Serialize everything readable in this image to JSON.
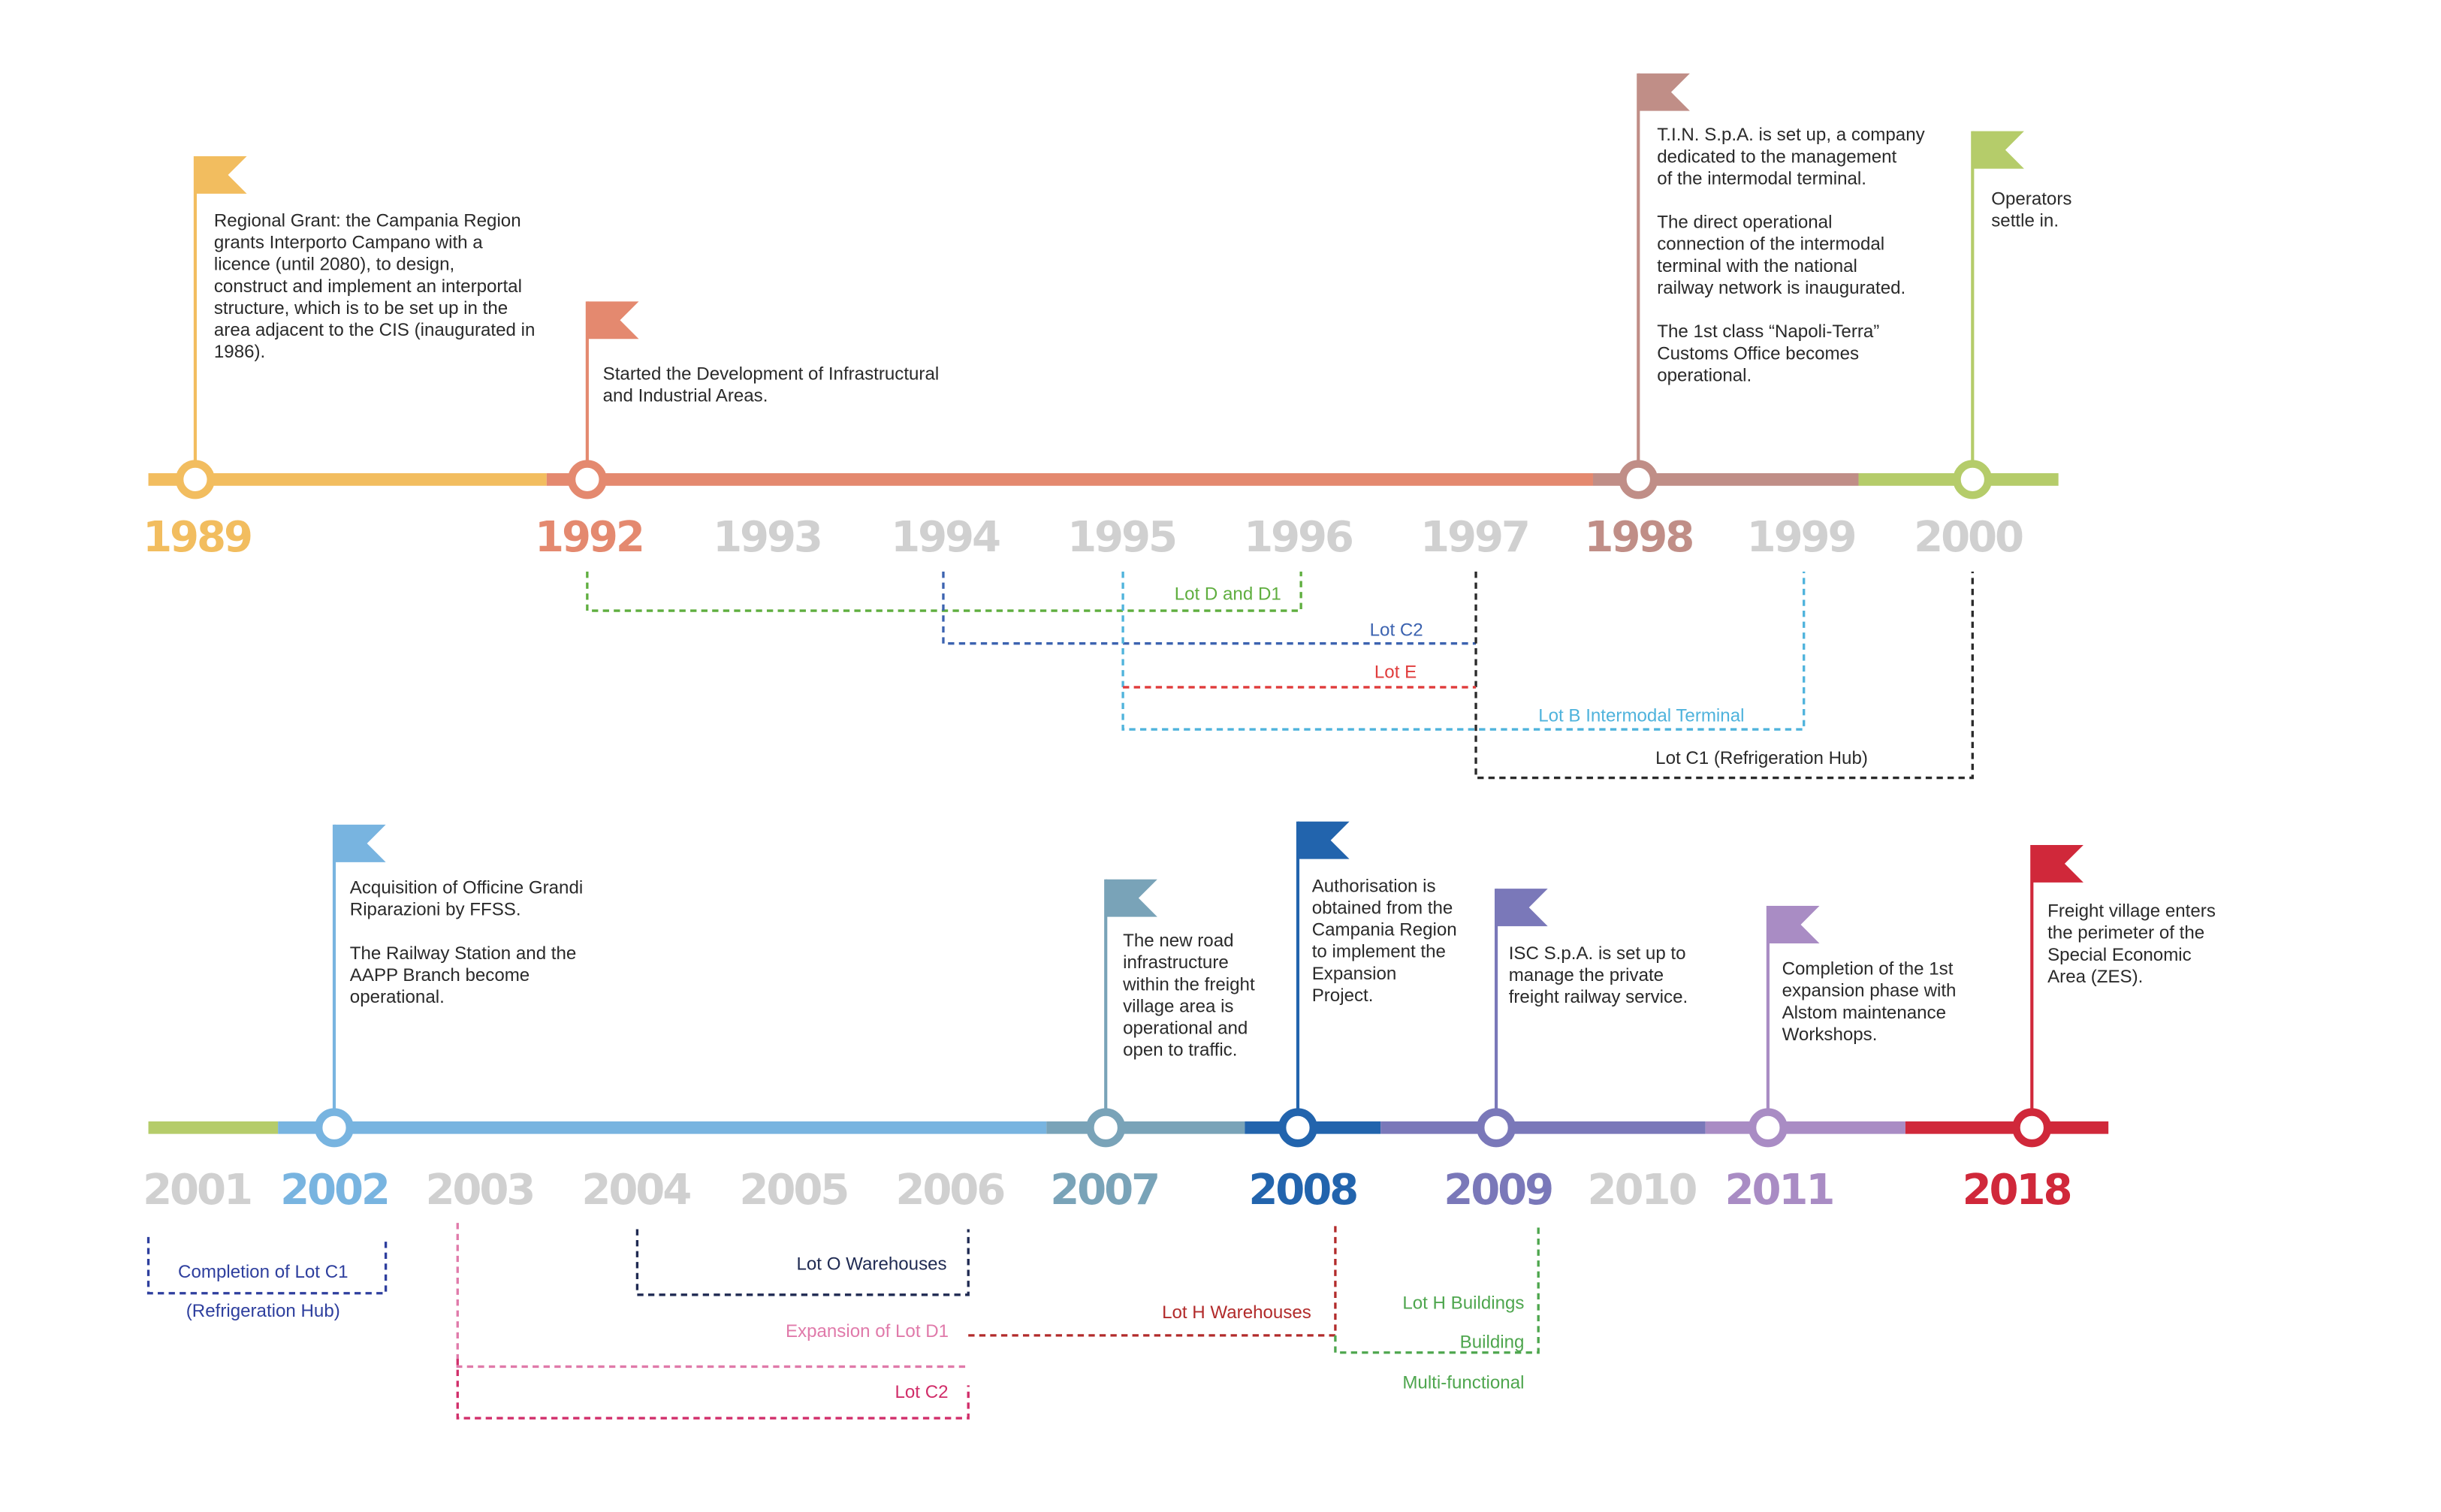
{
  "colors": {
    "muted_year": "#d0d0d0",
    "y1989": "#f2bd5f",
    "y1992": "#e4896f",
    "y1998": "#c08e87",
    "y2000": "#b5cc6a",
    "y2001": "#b5cc6a",
    "y2002": "#78b4e0",
    "y2007": "#79a3b8",
    "y2008": "#2264ad",
    "y2009": "#7a78b9",
    "y2011": "#a98cc4",
    "y2018": "#d0283a"
  },
  "timeline_top": {
    "years": [
      "1989",
      "1992",
      "1993",
      "1994",
      "1995",
      "1996",
      "1997",
      "1998",
      "1999",
      "2000"
    ],
    "events": {
      "e1989": [
        "Regional Grant: the Campania Region",
        "grants Interporto Campano with a",
        "licence (until 2080), to design,",
        "construct and implement an interportal",
        "structure, which is to be set up in the",
        "area adjacent to the CIS (inaugurated in",
        "1986)."
      ],
      "e1992": [
        "Started the Development of Infrastructural",
        "and Industrial Areas."
      ],
      "e1998a": [
        "T.I.N. S.p.A. is set up, a company",
        "dedicated to the management",
        "of the intermodal terminal."
      ],
      "e1998b": [
        "The direct operational",
        "connection of the intermodal",
        "terminal with the national",
        "railway network is inaugurated."
      ],
      "e1998c": [
        "The 1st class “Napoli-Terra”",
        "Customs Office becomes",
        "operational."
      ],
      "e2000": [
        "Operators",
        "settle in."
      ]
    },
    "lots": {
      "lot_d": "Lot D and D1",
      "lot_c2": "Lot C2",
      "lot_e": "Lot  E",
      "lot_b": "Lot B Intermodal Terminal",
      "lot_c1": "Lot C1 (Refrigeration Hub)"
    }
  },
  "timeline_bottom": {
    "years": [
      "2001",
      "2002",
      "2003",
      "2004",
      "2005",
      "2006",
      "2007",
      "2008",
      "2009",
      "2010",
      "2011",
      "2018"
    ],
    "events": {
      "e2002a": [
        "Acquisition of Officine Grandi",
        "Riparazioni by FFSS."
      ],
      "e2002b": [
        "The Railway Station and the",
        "AAPP Branch become",
        "operational."
      ],
      "e2007": [
        "The new road",
        "infrastructure",
        "within the freight",
        "village area is",
        "operational and",
        "open to traffic."
      ],
      "e2008": [
        "Authorisation is",
        "obtained from the",
        "Campania Region",
        "to implement the",
        "Expansion",
        "Project."
      ],
      "e2009": [
        "ISC S.p.A. is set up to",
        "manage the private",
        "freight railway service."
      ],
      "e2011": [
        "Completion of the 1st",
        "expansion phase with",
        "Alstom maintenance",
        "Workshops."
      ],
      "e2018": [
        "Freight village enters",
        "the perimeter of the",
        "Special Economic",
        "Area (ZES)."
      ]
    },
    "lots": {
      "lot_c1_done": [
        "Completion of Lot C1",
        "(Refrigeration Hub)"
      ],
      "lot_o": "Lot O Warehouses",
      "lot_h_wh": "Lot H Warehouses",
      "lot_h_bld": [
        "Lot H Buildings",
        "Building",
        "Multi-functional"
      ],
      "lot_d1_exp": "Expansion of Lot D1",
      "lot_c2": "Lot C2"
    }
  }
}
